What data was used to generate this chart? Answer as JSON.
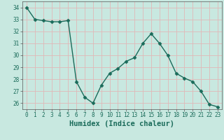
{
  "x": [
    0,
    1,
    2,
    3,
    4,
    5,
    6,
    7,
    8,
    9,
    10,
    11,
    12,
    13,
    14,
    15,
    16,
    17,
    18,
    19,
    20,
    21,
    22,
    23
  ],
  "y": [
    34.0,
    33.0,
    32.9,
    32.8,
    32.8,
    32.9,
    27.8,
    26.5,
    26.0,
    27.5,
    28.5,
    28.9,
    29.5,
    29.8,
    31.0,
    31.8,
    31.0,
    30.0,
    28.5,
    28.1,
    27.8,
    27.0,
    25.9,
    25.7
  ],
  "line_color": "#1a6b5a",
  "marker": "D",
  "marker_size": 2.5,
  "bg_color": "#c8e8e0",
  "grid_color": "#e0b8b8",
  "xlabel": "Humidex (Indice chaleur)",
  "ylim": [
    25.5,
    34.5
  ],
  "xlim": [
    -0.5,
    23.5
  ],
  "yticks": [
    26,
    27,
    28,
    29,
    30,
    31,
    32,
    33,
    34
  ],
  "xticks": [
    0,
    1,
    2,
    3,
    4,
    5,
    6,
    7,
    8,
    9,
    10,
    11,
    12,
    13,
    14,
    15,
    16,
    17,
    18,
    19,
    20,
    21,
    22,
    23
  ],
  "tick_fontsize": 5.5,
  "xlabel_fontsize": 7.5,
  "text_color": "#1a6b5a"
}
